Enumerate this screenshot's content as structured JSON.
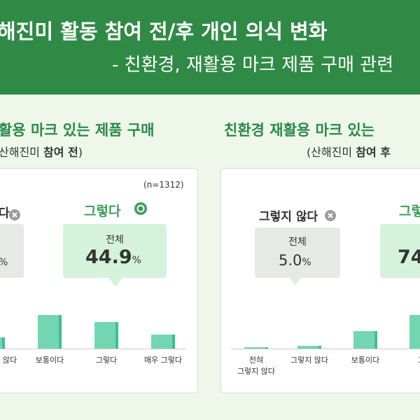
{
  "header": {
    "title": "해진미 활동 참여 전/후 개인 의식 변화",
    "subtitle": "- 친환경, 재활용 마크 제품 구매 관련"
  },
  "chart_data": [
    {
      "type": "bar",
      "title": "활용 마크 있는 제품 구매",
      "subtitle_prefix": "산해진미 ",
      "subtitle_bold": "참여 전",
      "subtitle_suffix": ")",
      "note": "(n=1312)",
      "negative_callout": {
        "name": "다",
        "unit": "%"
      },
      "positive_callout": {
        "name": "그렇다",
        "total": "전체",
        "value": 44.9,
        "unit": "%"
      },
      "categories": [
        "않다",
        "보통이다",
        "그렇다",
        "매우 그렇다"
      ],
      "values": [
        12.4,
        37.2,
        29.4,
        15.5
      ],
      "color": "#72d6b2"
    },
    {
      "type": "bar",
      "title": "친환경 재활용 마크 있는",
      "subtitle_prefix": "(산해진미 ",
      "subtitle_bold": "참여 후",
      "negative_callout": {
        "name": "그렇지 않다",
        "total": "전체",
        "value": 5.0,
        "value_label": "5.0",
        "unit": "%"
      },
      "positive_callout": {
        "name": "그렇",
        "value": 74
      },
      "categories": [
        "전혀\n그렇지 않다",
        "그렇지 않다",
        "보통이다",
        "그"
      ],
      "values": [
        1.6,
        3.4,
        19.4,
        37.2
      ],
      "color": "#72d6b2"
    }
  ]
}
